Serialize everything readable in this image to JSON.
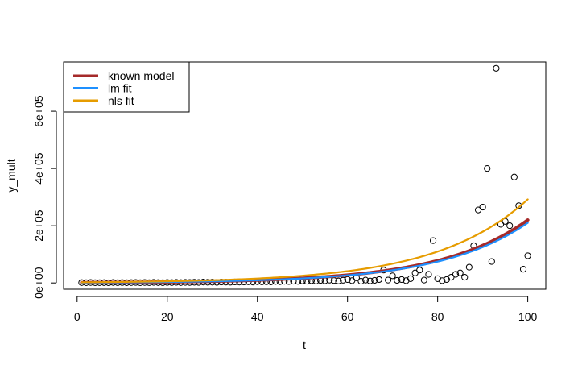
{
  "chart_data": {
    "type": "scatter",
    "title": "",
    "xlabel": "t",
    "ylabel": "y_mult",
    "xlim": [
      -3,
      104
    ],
    "ylim": [
      -22000,
      772000
    ],
    "xticks": [
      0,
      20,
      40,
      60,
      80,
      100
    ],
    "xtick_labels": [
      "0",
      "20",
      "40",
      "60",
      "80",
      "100"
    ],
    "yticks": [
      0,
      200000,
      400000,
      600000
    ],
    "ytick_labels": [
      "0e+00",
      "2e+05",
      "4e+05",
      "6e+05"
    ],
    "grid": false,
    "legend_position": "top-left",
    "points": {
      "x": [
        1,
        2,
        3,
        4,
        5,
        6,
        7,
        8,
        9,
        10,
        11,
        12,
        13,
        14,
        15,
        16,
        17,
        18,
        19,
        20,
        21,
        22,
        23,
        24,
        25,
        26,
        27,
        28,
        29,
        30,
        31,
        32,
        33,
        34,
        35,
        36,
        37,
        38,
        39,
        40,
        41,
        42,
        43,
        44,
        45,
        46,
        47,
        48,
        49,
        50,
        51,
        52,
        53,
        54,
        55,
        56,
        57,
        58,
        59,
        60,
        61,
        62,
        63,
        64,
        65,
        66,
        67,
        68,
        69,
        70,
        71,
        72,
        73,
        74,
        75,
        76,
        77,
        78,
        79,
        80,
        81,
        82,
        83,
        84,
        85,
        86,
        87,
        88,
        89,
        90,
        91,
        92,
        93,
        94,
        95,
        96,
        97,
        98,
        99,
        100
      ],
      "y": [
        1200,
        800,
        1500,
        900,
        1100,
        1300,
        700,
        1600,
        1000,
        1400,
        900,
        1200,
        1800,
        800,
        1500,
        1100,
        2000,
        1300,
        900,
        1700,
        1400,
        2100,
        1200,
        1900,
        1600,
        2300,
        1800,
        3000,
        2200,
        2600,
        2000,
        3200,
        2800,
        2400,
        3500,
        2900,
        3300,
        4000,
        3100,
        4500,
        3800,
        4200,
        3600,
        5000,
        4400,
        5800,
        4900,
        6200,
        5500,
        7000,
        6100,
        7800,
        6800,
        8800,
        7600,
        9900,
        8500,
        7000,
        9500,
        12000,
        8000,
        18000,
        6000,
        10000,
        7000,
        9000,
        12000,
        45000,
        10000,
        25000,
        9000,
        12000,
        8000,
        15000,
        35000,
        45000,
        10000,
        30000,
        148000,
        15000,
        8000,
        12000,
        20000,
        30000,
        35000,
        20000,
        55000,
        130000,
        255000,
        265000,
        400000,
        75000,
        750000,
        205000,
        215000,
        200000,
        370000,
        270000,
        48000,
        95000
      ]
    },
    "series": [
      {
        "name": "known model",
        "color": "#a52a2a",
        "x0": 1,
        "x1": 100,
        "y0": 1300,
        "y1": 220000
      },
      {
        "name": "lm fit",
        "color": "#1e90ff",
        "x0": 1,
        "x1": 100,
        "y0": 1250,
        "y1": 210000
      },
      {
        "name": "nls fit",
        "color": "#e69c00",
        "x0": 1,
        "x1": 100,
        "y0": 2300,
        "y1": 292000
      }
    ]
  }
}
